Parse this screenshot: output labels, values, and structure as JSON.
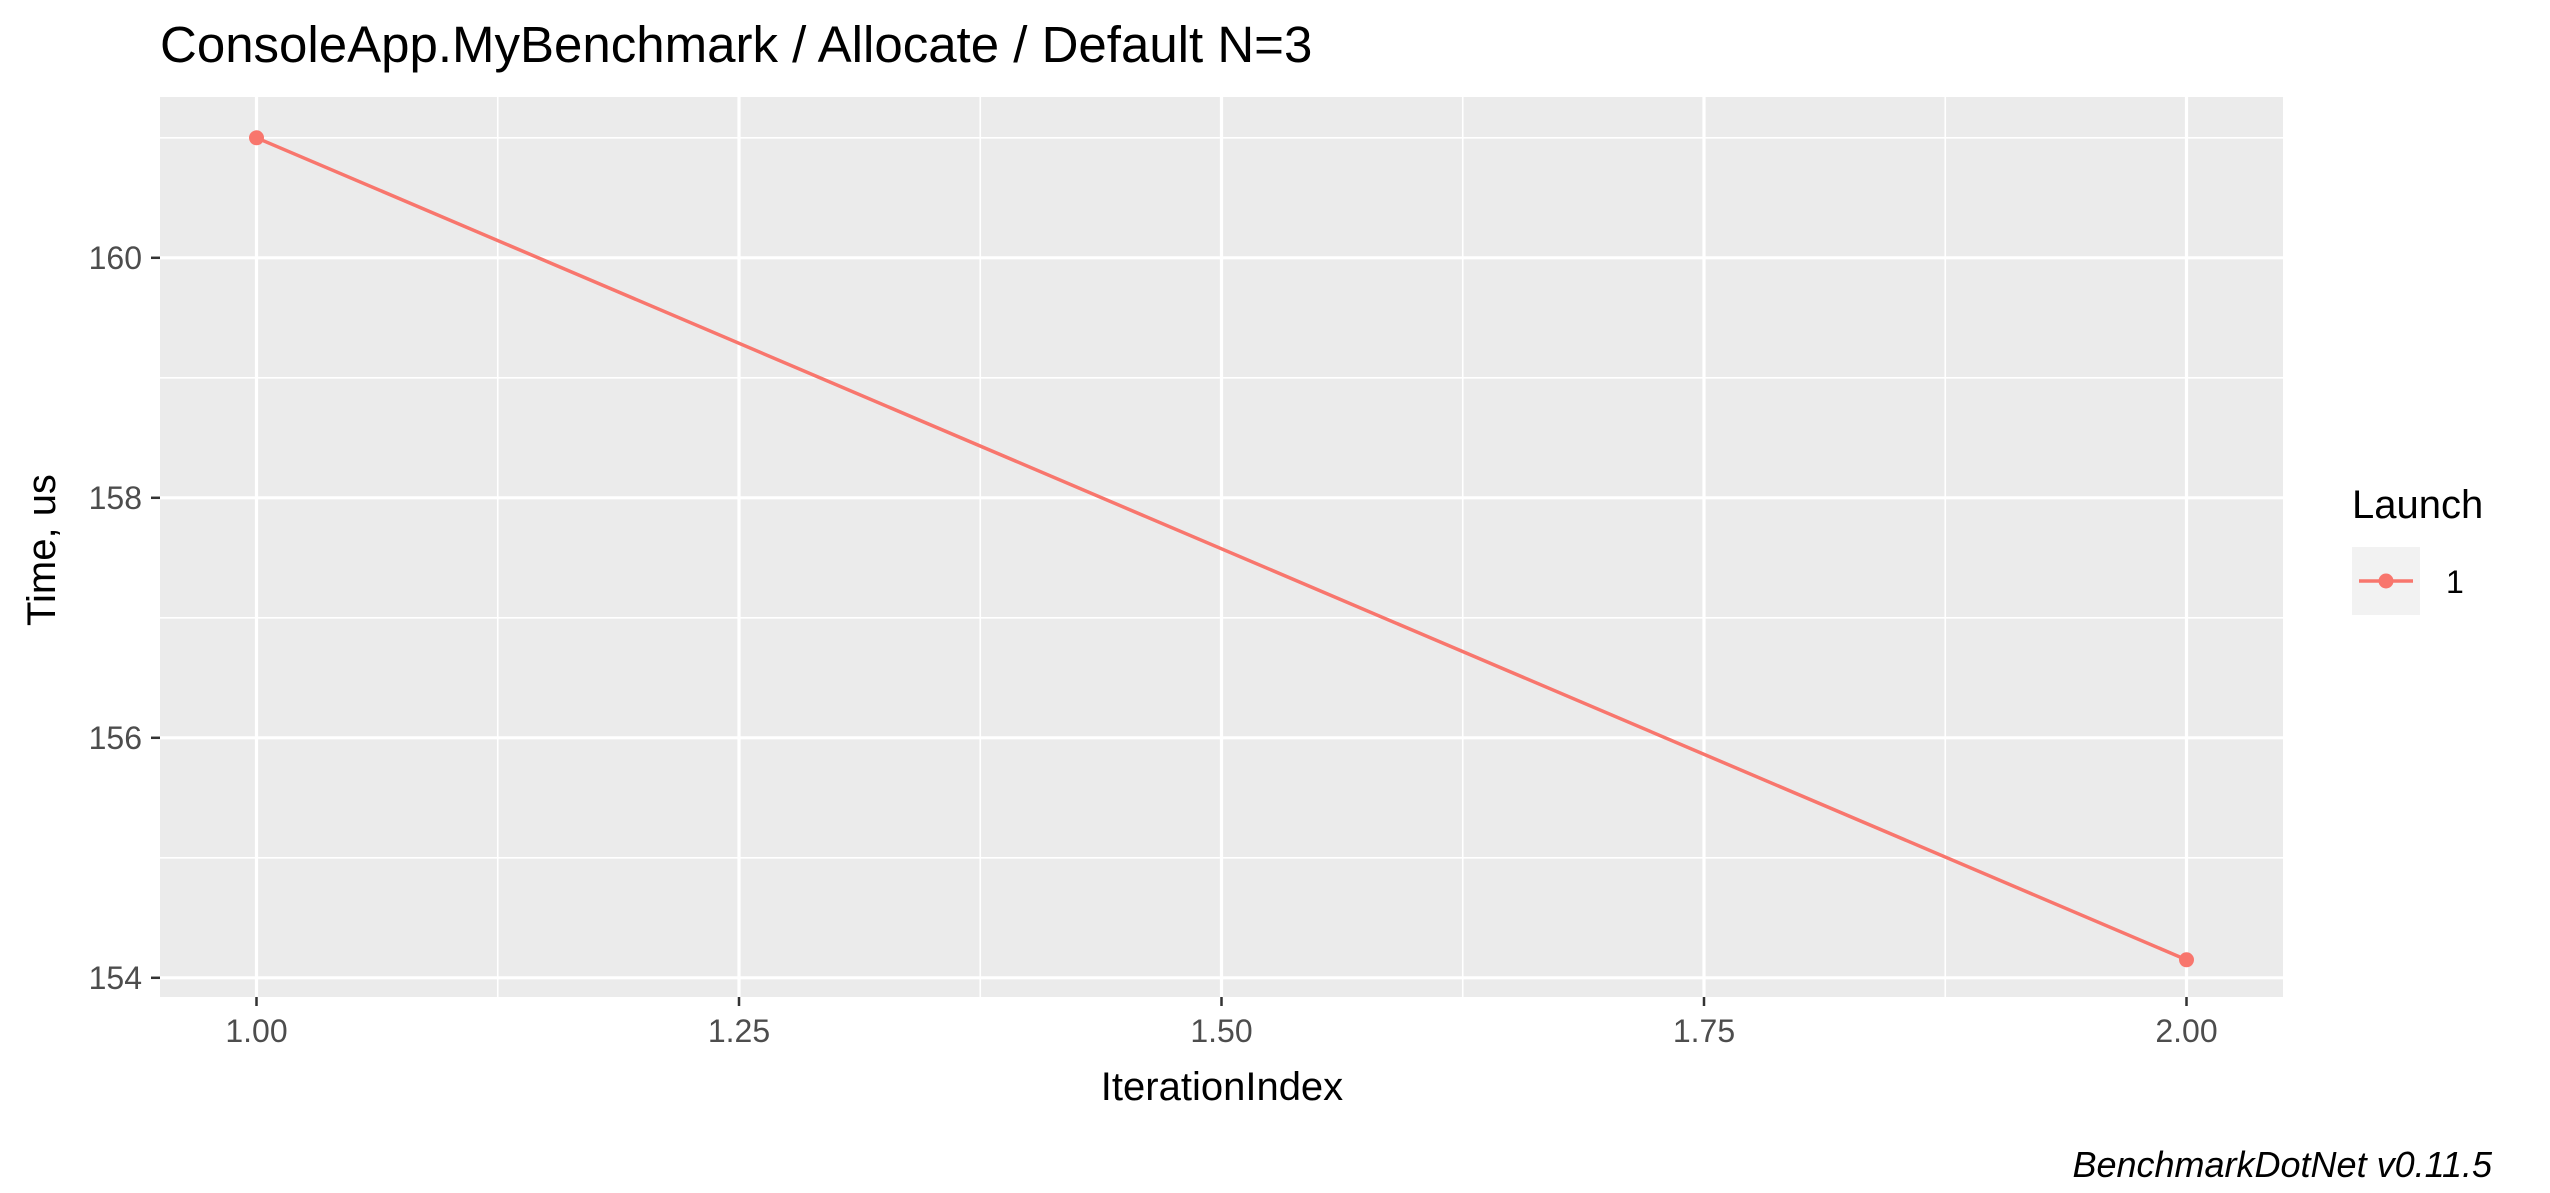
{
  "chart_data": {
    "type": "line",
    "title": "ConsoleApp.MyBenchmark / Allocate / Default N=3",
    "xlabel": "IterationIndex",
    "ylabel": "Time, us",
    "caption": "BenchmarkDotNet v0.11.5",
    "xlim": [
      0.95,
      2.05
    ],
    "ylim": [
      153.84,
      161.34
    ],
    "x_ticks": [
      1.0,
      1.25,
      1.5,
      1.75,
      2.0
    ],
    "x_tick_labels": [
      "1.00",
      "1.25",
      "1.50",
      "1.75",
      "2.00"
    ],
    "x_minor_ticks": [
      1.125,
      1.375,
      1.625,
      1.875
    ],
    "y_ticks": [
      154,
      156,
      158,
      160
    ],
    "y_tick_labels": [
      "154",
      "156",
      "158",
      "160"
    ],
    "y_minor_ticks": [
      155,
      157,
      159,
      161
    ],
    "grid": true,
    "legend": {
      "title": "Launch",
      "position": "right"
    },
    "series": [
      {
        "name": "1",
        "color": "#f8766d",
        "x": [
          1.0,
          2.0
        ],
        "y": [
          161.0,
          154.15
        ]
      }
    ]
  },
  "colors": {
    "panel_background": "#ebebeb",
    "grid_line": "#ffffff",
    "tick_label": "#4d4d4d"
  }
}
